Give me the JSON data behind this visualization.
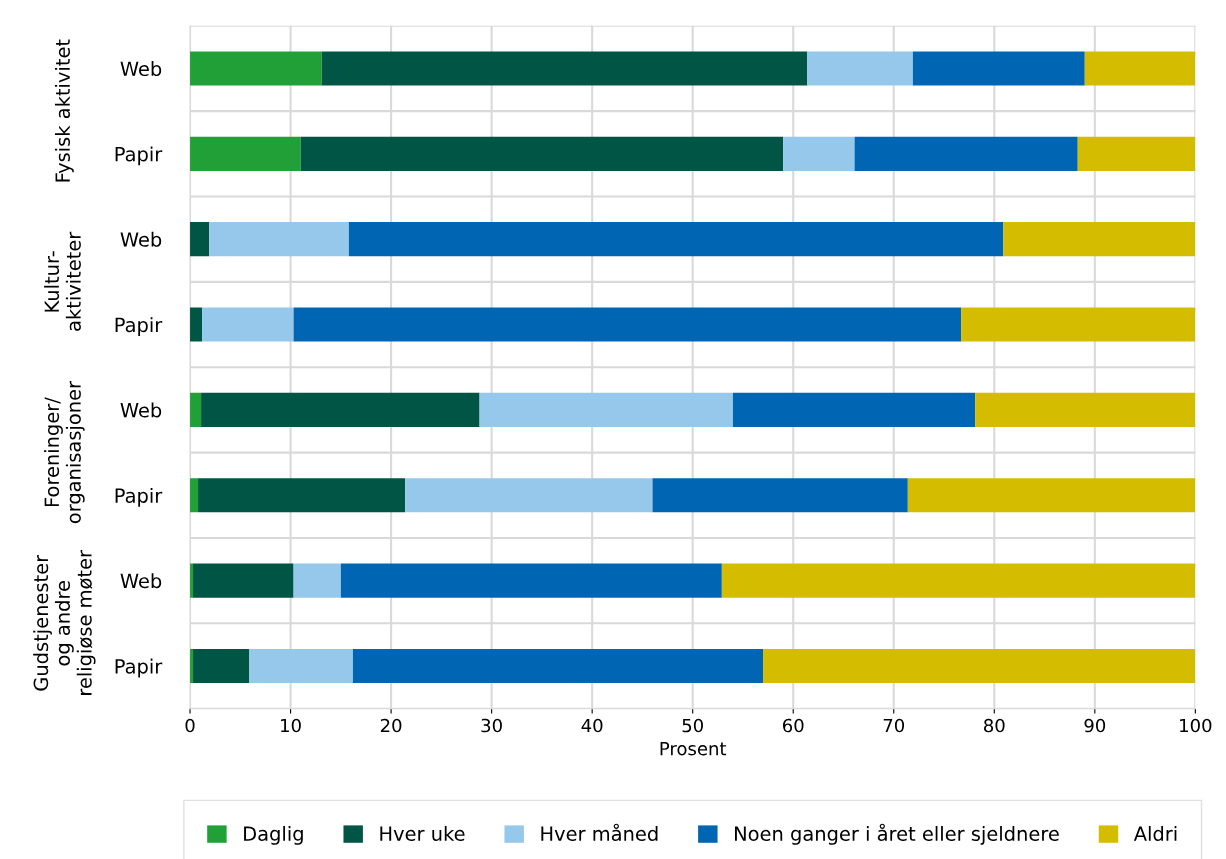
{
  "chart_data": {
    "type": "bar",
    "orientation": "horizontal",
    "stacked": true,
    "categories": [
      "Web",
      "Papir",
      "Web",
      "Papir",
      "Web",
      "Papir",
      "Web",
      "Papir"
    ],
    "series": [
      {
        "name": "Daglig",
        "color": "#21a038",
        "values": [
          13.1,
          11.0,
          0,
          0,
          1.1,
          0.8,
          0.3,
          0.3
        ]
      },
      {
        "name": "Hver uke",
        "color": "#005544",
        "values": [
          48.3,
          48.0,
          1.9,
          1.2,
          27.7,
          20.6,
          10.0,
          5.6
        ]
      },
      {
        "name": "Hver måned",
        "color": "#96c8eb",
        "values": [
          10.5,
          7.1,
          13.9,
          9.1,
          25.2,
          24.6,
          4.7,
          10.3
        ]
      },
      {
        "name": "Noen ganger i året eller sjeldnere",
        "color": "#0066b3",
        "values": [
          17.1,
          22.2,
          65.1,
          66.4,
          24.1,
          25.4,
          37.9,
          40.8
        ]
      },
      {
        "name": "Aldri",
        "color": "#d4bc00",
        "values": [
          11.0,
          11.7,
          19.1,
          23.3,
          21.9,
          28.6,
          47.1,
          43.0
        ]
      }
    ],
    "annotations": [
      "Fysisk aktivitet",
      "Kultur-\naktiviteter",
      "Foreninger/\norganisasjoner",
      "Gudstjenester\nog andre\nreligiøse møter"
    ],
    "xlabel": "Prosent",
    "xlim": [
      0,
      100
    ],
    "xticks": [
      0,
      10,
      20,
      30,
      40,
      50,
      60,
      70,
      80,
      90,
      100
    ],
    "grid": true,
    "legend": "bottom"
  }
}
